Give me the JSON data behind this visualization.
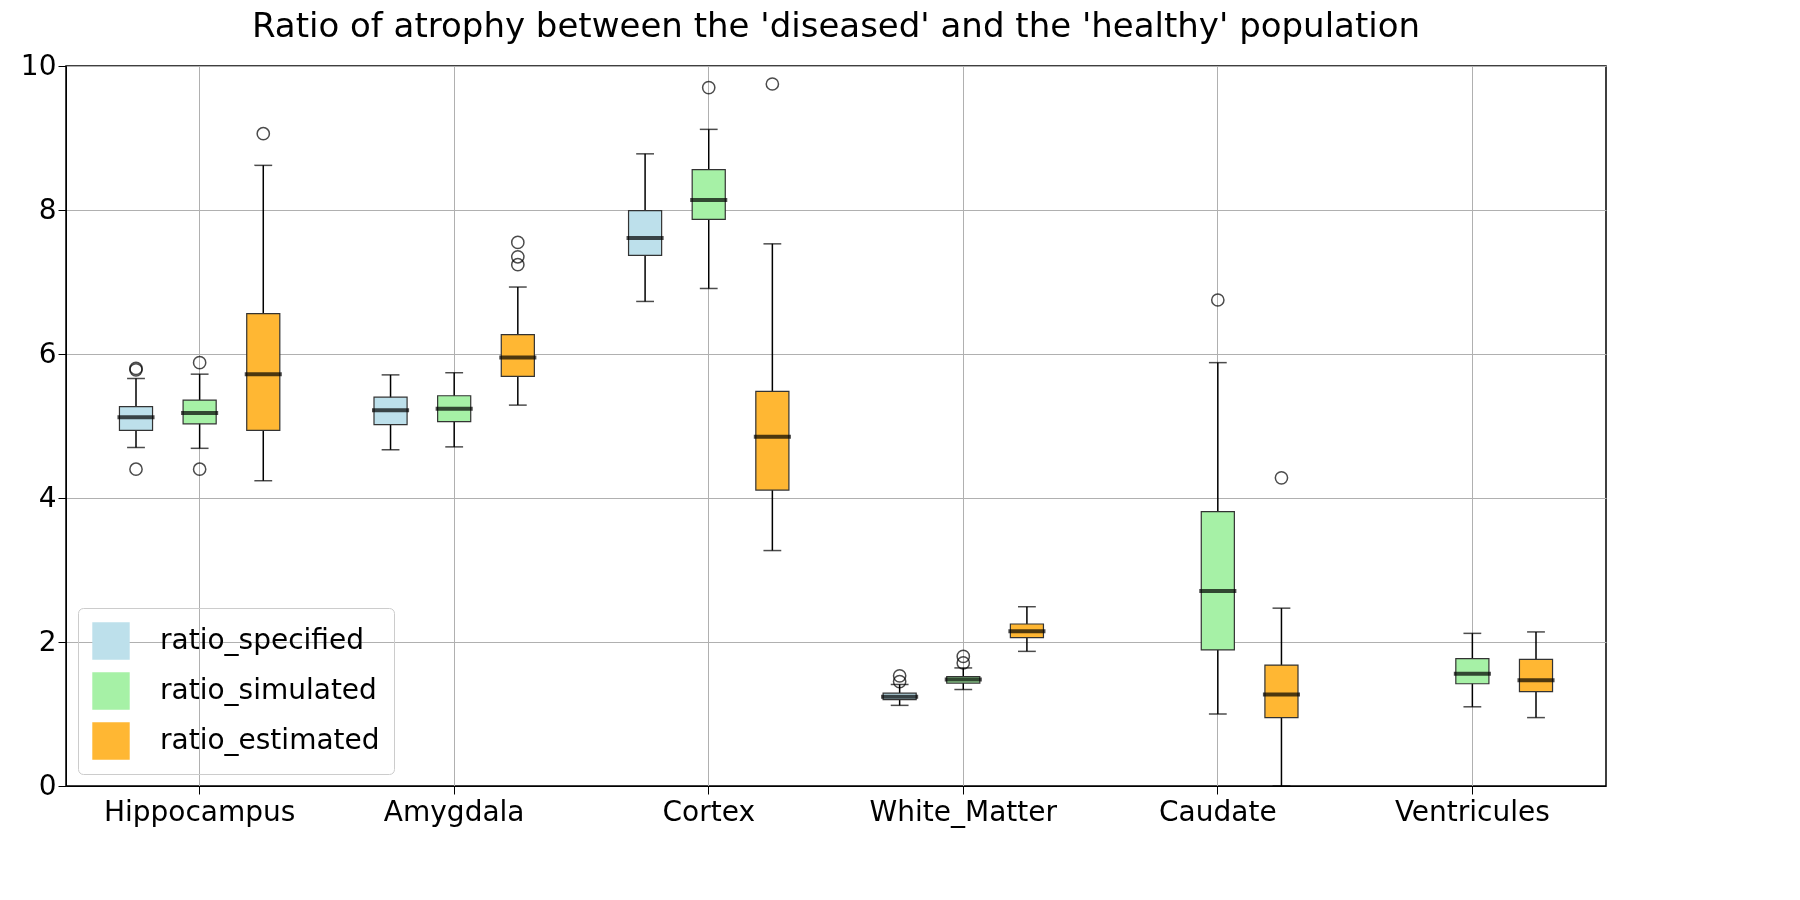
{
  "chart_data": {
    "type": "box",
    "title": "Ratio of atrophy between the 'diseased' and the 'healthy'  population",
    "categories": [
      "Hippocampus",
      "Amygdala",
      "Cortex",
      "White_Matter",
      "Caudate",
      "Ventricules"
    ],
    "ylim": [
      0,
      10
    ],
    "yticks": [
      0,
      2,
      4,
      6,
      8,
      10
    ],
    "grid": true,
    "legend": "bottom left",
    "series": [
      {
        "name": "ratio_specified",
        "color": "#bde0eb",
        "boxes": [
          {
            "low": 4.7,
            "q1": 4.94,
            "median": 5.12,
            "q3": 5.27,
            "high": 5.66,
            "outliers": [
              5.78,
              5.8,
              4.4
            ]
          },
          {
            "low": 4.67,
            "q1": 5.02,
            "median": 5.22,
            "q3": 5.4,
            "high": 5.71
          },
          {
            "low": 6.73,
            "q1": 7.37,
            "median": 7.61,
            "q3": 7.99,
            "high": 8.78
          },
          {
            "low": 1.12,
            "q1": 1.2,
            "median": 1.24,
            "q3": 1.29,
            "high": 1.41,
            "outliers": [
              1.53,
              1.45
            ]
          },
          null,
          null
        ]
      },
      {
        "name": "ratio_simulated",
        "color": "#a6f1a6",
        "boxes": [
          {
            "low": 4.69,
            "q1": 5.03,
            "median": 5.18,
            "q3": 5.36,
            "high": 5.72,
            "outliers": [
              5.88,
              4.4
            ]
          },
          {
            "low": 4.71,
            "q1": 5.06,
            "median": 5.24,
            "q3": 5.42,
            "high": 5.74
          },
          {
            "low": 6.91,
            "q1": 7.87,
            "median": 8.14,
            "q3": 8.56,
            "high": 9.12,
            "outliers": [
              9.7
            ]
          },
          {
            "low": 1.34,
            "q1": 1.43,
            "median": 1.48,
            "q3": 1.52,
            "high": 1.64,
            "outliers": [
              1.8,
              1.71
            ]
          },
          {
            "low": 1.0,
            "q1": 1.89,
            "median": 2.71,
            "q3": 3.81,
            "high": 5.88,
            "outliers": [
              6.75
            ]
          },
          {
            "low": 1.1,
            "q1": 1.42,
            "median": 1.56,
            "q3": 1.77,
            "high": 2.12
          }
        ]
      },
      {
        "name": "ratio_estimated",
        "color": "#ffb733",
        "boxes": [
          {
            "low": 4.24,
            "q1": 4.94,
            "median": 5.72,
            "q3": 6.56,
            "high": 8.62,
            "outliers": [
              9.06
            ]
          },
          {
            "low": 5.29,
            "q1": 5.69,
            "median": 5.95,
            "q3": 6.27,
            "high": 6.93,
            "outliers": [
              7.55,
              7.35,
              7.24
            ]
          },
          {
            "low": 3.27,
            "q1": 4.11,
            "median": 4.85,
            "q3": 5.48,
            "high": 7.53,
            "outliers": [
              9.75
            ]
          },
          {
            "low": 1.87,
            "q1": 2.06,
            "median": 2.15,
            "q3": 2.25,
            "high": 2.49
          },
          {
            "low": 0,
            "q1": 0.95,
            "median": 1.27,
            "q3": 1.68,
            "high": 2.47,
            "outliers": [
              4.28
            ]
          },
          {
            "low": 0.95,
            "q1": 1.31,
            "median": 1.47,
            "q3": 1.76,
            "high": 2.14
          }
        ]
      }
    ]
  }
}
